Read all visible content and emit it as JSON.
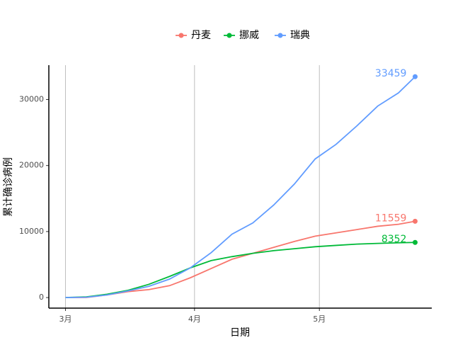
{
  "chart_data": {
    "type": "line",
    "x_label": "日期",
    "y_label": "累计确诊病例",
    "x": [
      0,
      5,
      10,
      15,
      20,
      25,
      30,
      35,
      40,
      45,
      50,
      55,
      60,
      65,
      70,
      75,
      80,
      84
    ],
    "xlim": [
      -4,
      88
    ],
    "xticks": [
      {
        "value": 0,
        "label": "3月"
      },
      {
        "value": 31,
        "label": "4月"
      },
      {
        "value": 61,
        "label": "5月"
      }
    ],
    "ylim": [
      -1600,
      35200
    ],
    "yticks": [
      0,
      10000,
      20000,
      30000
    ],
    "grid": "x",
    "legend": "top",
    "series": [
      {
        "name": "丹麦",
        "color": "#F8766D",
        "values": [
          0,
          10,
          400,
          900,
          1200,
          1800,
          3000,
          4400,
          5800,
          6700,
          7600,
          8500,
          9300,
          9800,
          10300,
          10800,
          11100,
          11559
        ]
      },
      {
        "name": "挪威",
        "color": "#00BA38",
        "values": [
          0,
          100,
          500,
          1100,
          2000,
          3200,
          4500,
          5600,
          6200,
          6700,
          7100,
          7400,
          7700,
          7900,
          8100,
          8200,
          8300,
          8352
        ]
      },
      {
        "name": "瑞典",
        "color": "#619CFF",
        "values": [
          0,
          50,
          400,
          1000,
          1700,
          2800,
          4500,
          6800,
          9600,
          11300,
          14000,
          17200,
          21000,
          23200,
          26000,
          29000,
          31000,
          33459
        ]
      }
    ]
  }
}
